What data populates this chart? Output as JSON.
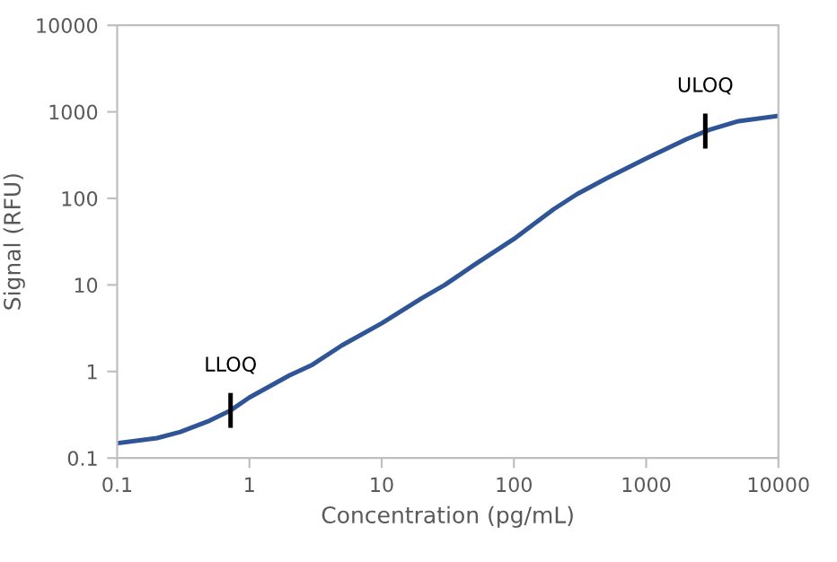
{
  "chart_data": {
    "type": "line",
    "xlabel": "Concentration (pg/mL)",
    "ylabel": "Signal (RFU)",
    "log": "xy",
    "x": [
      0.1,
      0.2,
      0.3,
      0.5,
      0.72,
      1,
      2,
      3,
      5,
      10,
      20,
      30,
      50,
      100,
      200,
      300,
      500,
      1000,
      2000,
      3000,
      5000,
      10000
    ],
    "series": [
      {
        "color": "#2f5597",
        "values": [
          0.148,
          0.17,
          0.2,
          0.27,
          0.355,
          0.5,
          0.9,
          1.2,
          2.0,
          3.6,
          7,
          10,
          17,
          34,
          75,
          112,
          170,
          290,
          480,
          620,
          780,
          900
        ]
      }
    ],
    "xlim": [
      0.1,
      10000
    ],
    "xticks": [
      0.1,
      1,
      10,
      100,
      1000,
      10000
    ],
    "ylim": [
      0.1,
      10000
    ],
    "yticks": [
      0.1,
      1,
      10,
      100,
      1000,
      10000
    ],
    "grid": false,
    "marker": "none",
    "line_style": "solid",
    "annotations": [
      {
        "text": "LLOQ",
        "x": 0.72,
        "y": 0.355
      },
      {
        "text": "ULOQ",
        "x": 2800,
        "y": 600
      }
    ]
  }
}
